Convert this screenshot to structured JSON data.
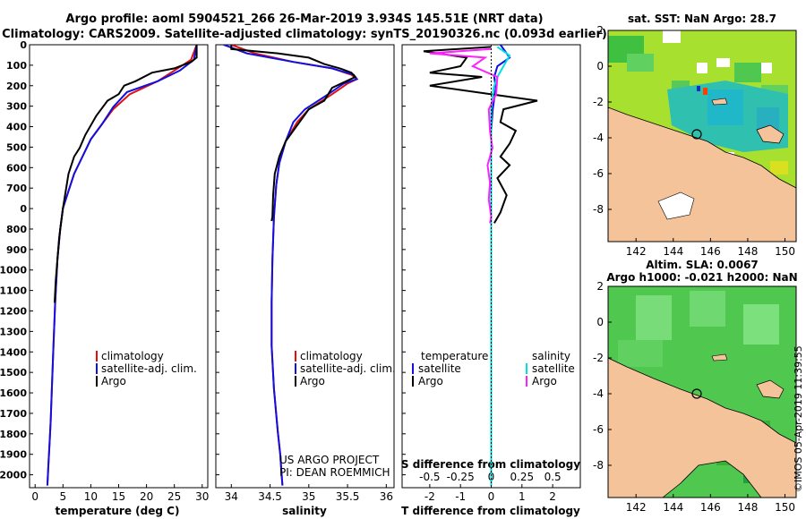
{
  "header": {
    "title_line1": "Argo profile: aoml 5904521_266 26-Mar-2019 3.934S 145.51E (NRT data)",
    "title_line2": "Climatology: CARS2009. Satellite-adjusted climatology: synTS_20190326.nc (0.093d earlier)"
  },
  "colors": {
    "climatology": "#e01010",
    "satellite": "#1010e0",
    "argo": "#000000",
    "sat_salinity": "#00e0e0",
    "argo_salinity": "#ff20ff",
    "land": "#f5c39a"
  },
  "legend": {
    "climatology": "climatology",
    "satellite_adj": "satellite-adj. clim.",
    "argo": "Argo",
    "temperature": "temperature",
    "salinity": "salinity",
    "satellite": "satellite"
  },
  "credits": {
    "line1": "US ARGO PROJECT",
    "line2": "PI: DEAN ROEMMICH",
    "timestamp": "©IMOS 05-Apr-2019 11:39:55"
  },
  "depth_ticks": [
    "0",
    "100",
    "200",
    "300",
    "400",
    "500",
    "600",
    "700",
    "0",
    "800",
    "900",
    "1000",
    "1100",
    "1200",
    "1300",
    "1400",
    "1500",
    "1600",
    "1700",
    "1800",
    "1900",
    "2000"
  ],
  "chart_data": [
    {
      "type": "line",
      "name": "temperature",
      "xlabel": "temperature (deg C)",
      "ylabel": "depth",
      "xlim": [
        -1,
        31
      ],
      "ylim": [
        2060,
        0
      ],
      "xticks": [
        "0",
        "5",
        "10",
        "15",
        "20",
        "25",
        "30"
      ],
      "series": [
        {
          "name": "climatology",
          "x": [
            29,
            28,
            25,
            22,
            17,
            14,
            12,
            10,
            8.5,
            7,
            6,
            5,
            4.5,
            4,
            3.6,
            3.3,
            3,
            2.8,
            2.6,
            2.4,
            2.3,
            2.2
          ],
          "y": [
            0,
            70,
            120,
            170,
            230,
            300,
            370,
            440,
            520,
            600,
            680,
            760,
            860,
            1000,
            1200,
            1400,
            1600,
            1750,
            1850,
            1950,
            2000,
            2050
          ]
        },
        {
          "name": "satellite",
          "x": [
            29,
            28.5,
            26,
            22,
            16.5,
            14,
            12,
            10,
            8.5,
            7,
            6,
            5,
            4.5,
            4,
            3.6,
            3.3,
            3,
            2.8,
            2.6,
            2.4,
            2.3,
            2.2
          ],
          "y": [
            0,
            70,
            120,
            170,
            220,
            290,
            370,
            440,
            520,
            600,
            680,
            760,
            860,
            1000,
            1200,
            1400,
            1600,
            1750,
            1850,
            1950,
            2000,
            2050
          ]
        },
        {
          "name": "argo",
          "x": [
            29,
            29,
            28,
            25,
            21,
            18,
            16,
            15,
            13,
            11,
            9,
            8,
            7,
            6,
            5.5,
            5,
            4.6,
            4.3,
            4,
            3.7,
            3.5
          ],
          "y": [
            0,
            60,
            80,
            110,
            130,
            170,
            190,
            230,
            260,
            330,
            420,
            480,
            520,
            600,
            680,
            760,
            840,
            900,
            1000,
            1100,
            1200
          ]
        }
      ]
    },
    {
      "type": "line",
      "name": "salinity",
      "xlabel": "salinity",
      "ylabel": "depth",
      "xlim": [
        33.8,
        36.1
      ],
      "ylim": [
        2060,
        0
      ],
      "xticks": [
        "34",
        "34.5",
        "35",
        "35.5",
        "36"
      ],
      "series": [
        {
          "name": "climatology",
          "x": [
            34.0,
            34.3,
            34.8,
            35.3,
            35.55,
            35.62,
            35.5,
            35.3,
            35.0,
            34.85,
            34.7,
            34.62,
            34.58,
            34.55,
            34.53,
            34.52,
            34.52,
            34.55,
            34.6,
            34.63,
            34.65,
            34.66
          ],
          "y": [
            0,
            40,
            80,
            110,
            140,
            160,
            180,
            230,
            300,
            360,
            450,
            550,
            650,
            800,
            1000,
            1200,
            1400,
            1600,
            1800,
            1900,
            2000,
            2050
          ]
        },
        {
          "name": "satellite",
          "x": [
            33.9,
            34.2,
            34.8,
            35.3,
            35.58,
            35.62,
            35.45,
            35.25,
            34.95,
            34.8,
            34.7,
            34.62,
            34.58,
            34.55,
            34.53,
            34.52,
            34.52,
            34.55,
            34.6,
            34.63,
            34.65,
            34.66
          ],
          "y": [
            0,
            40,
            80,
            110,
            140,
            160,
            180,
            230,
            300,
            360,
            450,
            550,
            650,
            800,
            1000,
            1200,
            1400,
            1600,
            1800,
            1900,
            2000,
            2050
          ]
        },
        {
          "name": "argo",
          "x": [
            34.0,
            34.0,
            34.6,
            35.0,
            35.2,
            35.4,
            35.55,
            35.6,
            35.3,
            35.2,
            35.0,
            34.9,
            34.8,
            34.7,
            34.62,
            34.56,
            34.54,
            34.53,
            34.52
          ],
          "y": [
            0,
            20,
            40,
            60,
            90,
            110,
            130,
            150,
            200,
            260,
            300,
            350,
            400,
            450,
            520,
            600,
            700,
            800,
            820
          ]
        }
      ]
    },
    {
      "type": "line",
      "name": "difference",
      "xlabel": "T difference from climatology",
      "x2label": "S difference from climatology",
      "xlim": [
        -2.9,
        2.9
      ],
      "x2lim": [
        -0.725,
        0.725
      ],
      "ylim": [
        2060,
        0
      ],
      "xticks": [
        "-2",
        "-1",
        "0",
        "1",
        "2"
      ],
      "x2ticks": [
        "-0.5",
        "-0.25",
        "0",
        "0.25",
        "0.5"
      ],
      "series": [
        {
          "name": "temperature satellite",
          "x": [
            0.3,
            0.6,
            0.2,
            0.1,
            0.15,
            0.05,
            0,
            0,
            0,
            0,
            0,
            0,
            0,
            0
          ],
          "y": [
            0,
            60,
            100,
            150,
            200,
            300,
            400,
            500,
            600,
            800,
            1000,
            1400,
            1800,
            2050
          ]
        },
        {
          "name": "temperature argo",
          "x": [
            0,
            -2.2,
            -0.8,
            -1,
            -2,
            -0.3,
            -2,
            0.5,
            1.5,
            0.4,
            0.3,
            0.8,
            0.6,
            0.3,
            0.6,
            0.2,
            0.5,
            0.3,
            0.1
          ],
          "y": [
            10,
            30,
            60,
            100,
            130,
            150,
            190,
            240,
            260,
            300,
            360,
            400,
            460,
            520,
            560,
            620,
            700,
            780,
            830
          ]
        },
        {
          "name": "salinity satellite",
          "x": [
            0.05,
            0.15,
            0.1,
            0.05,
            0.02,
            0.0,
            0.0,
            0.0,
            0.0,
            0.0,
            0.0,
            0.0
          ],
          "y": [
            10,
            50,
            100,
            150,
            200,
            300,
            400,
            600,
            800,
            1200,
            1600,
            2050
          ]
        },
        {
          "name": "salinity argo",
          "x": [
            0.0,
            -0.5,
            -0.05,
            -0.15,
            0.05,
            0.04,
            -0.02,
            -0.01,
            0.01,
            -0.03,
            -0.01,
            -0.02,
            0.0,
            -0.01
          ],
          "y": [
            20,
            40,
            60,
            100,
            150,
            230,
            300,
            400,
            480,
            560,
            640,
            720,
            800,
            830
          ]
        }
      ]
    }
  ],
  "maps": {
    "sst": {
      "title": "sat. SST: NaN Argo: 28.7",
      "yticks": [
        "2",
        "0",
        "-2",
        "-4",
        "-6",
        "-8"
      ],
      "xticks": [
        "142",
        "144",
        "146",
        "148",
        "150"
      ]
    },
    "sla": {
      "title1": "Altim. SLA: 0.0067",
      "title2": "Argo h1000: -0.021 h2000: NaN",
      "yticks": [
        "2",
        "0",
        "-2",
        "-4",
        "-6",
        "-8"
      ],
      "xticks": [
        "142",
        "144",
        "146",
        "148",
        "150"
      ]
    }
  }
}
